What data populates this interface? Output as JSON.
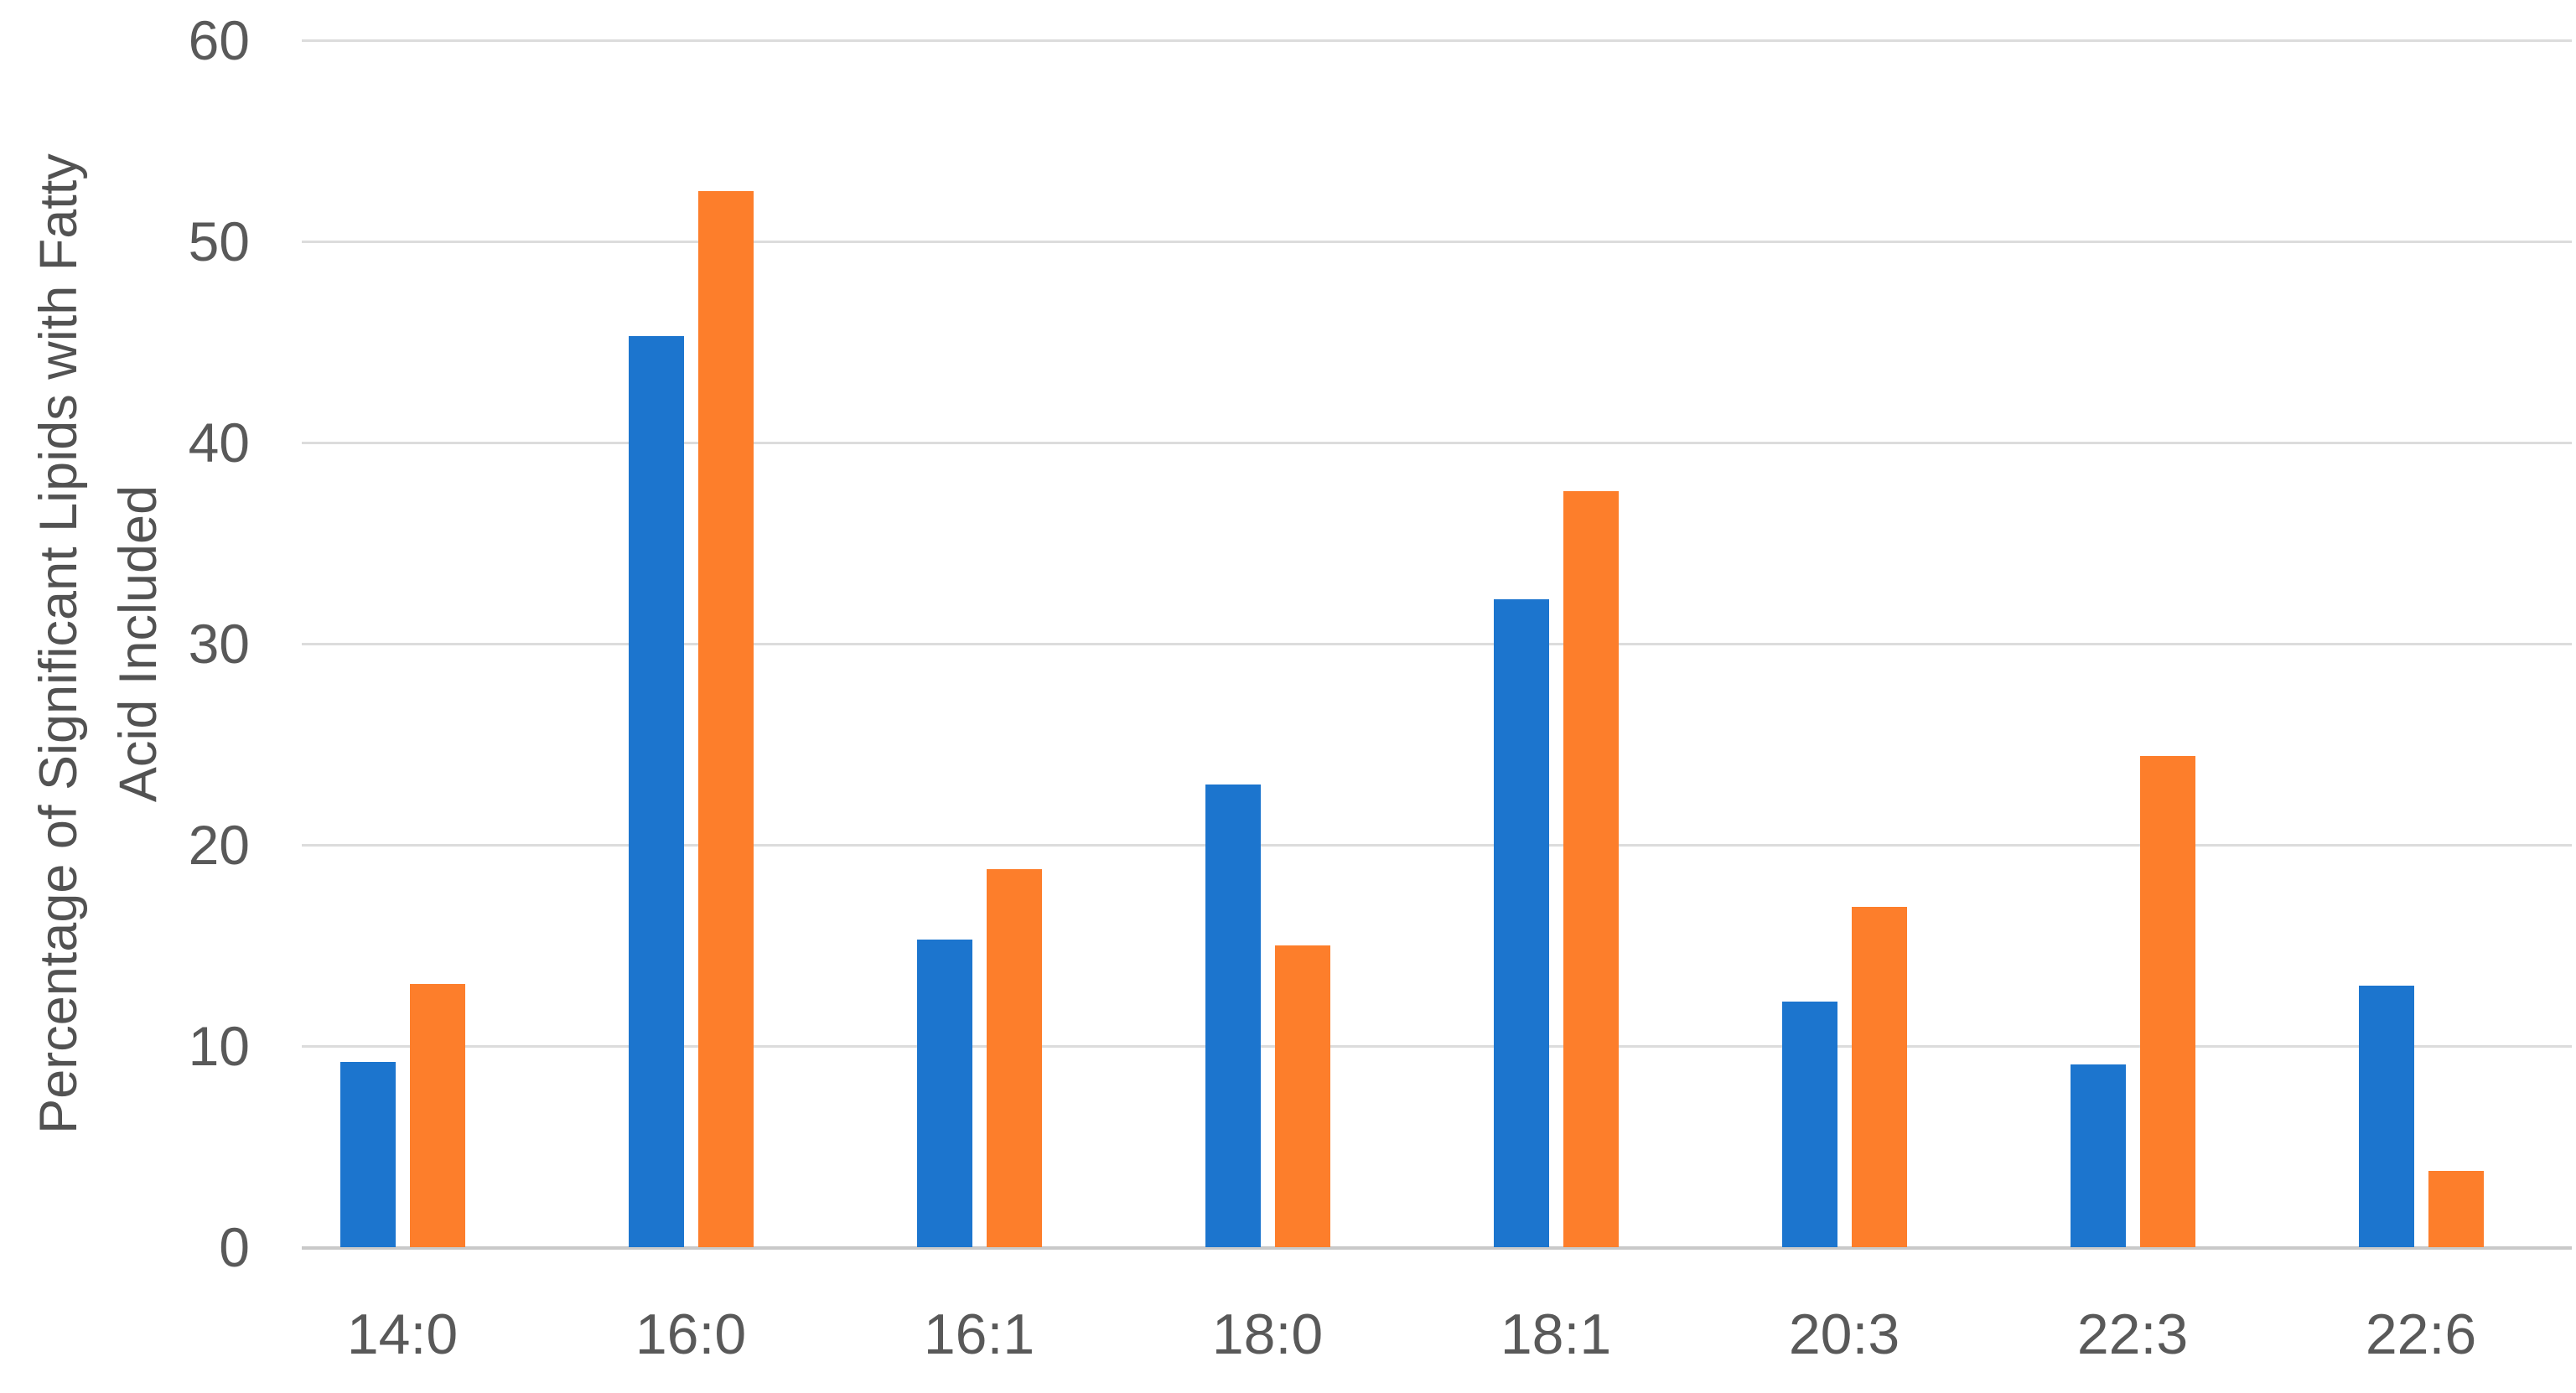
{
  "chart_data": {
    "type": "bar",
    "title": "",
    "ylabel_line1": "Percentage of Significant Lipids with Fatty",
    "ylabel_line2": "Acid Included",
    "xlabel": "",
    "categories": [
      "14:0",
      "16:0",
      "16:1",
      "18:0",
      "18:1",
      "20:3",
      "22:3",
      "22:6"
    ],
    "series": [
      {
        "name": "blue",
        "color": "#1c75ce",
        "values": [
          9.2,
          45.3,
          15.3,
          23.0,
          32.2,
          12.2,
          9.1,
          13.0
        ]
      },
      {
        "name": "orange",
        "color": "#fd7e2b",
        "values": [
          13.1,
          52.5,
          18.8,
          15.0,
          37.6,
          16.9,
          24.4,
          3.8
        ]
      }
    ],
    "y_ticks": [
      0,
      10,
      20,
      30,
      40,
      50,
      60
    ],
    "ylim": [
      0,
      60
    ],
    "grid": true,
    "legend": "none",
    "colors": {
      "gridline": "#dcdcdc",
      "zero_line": "#c9c9c9",
      "tick_label": "#595959",
      "axis_title": "#525252",
      "background": "#ffffff"
    }
  }
}
